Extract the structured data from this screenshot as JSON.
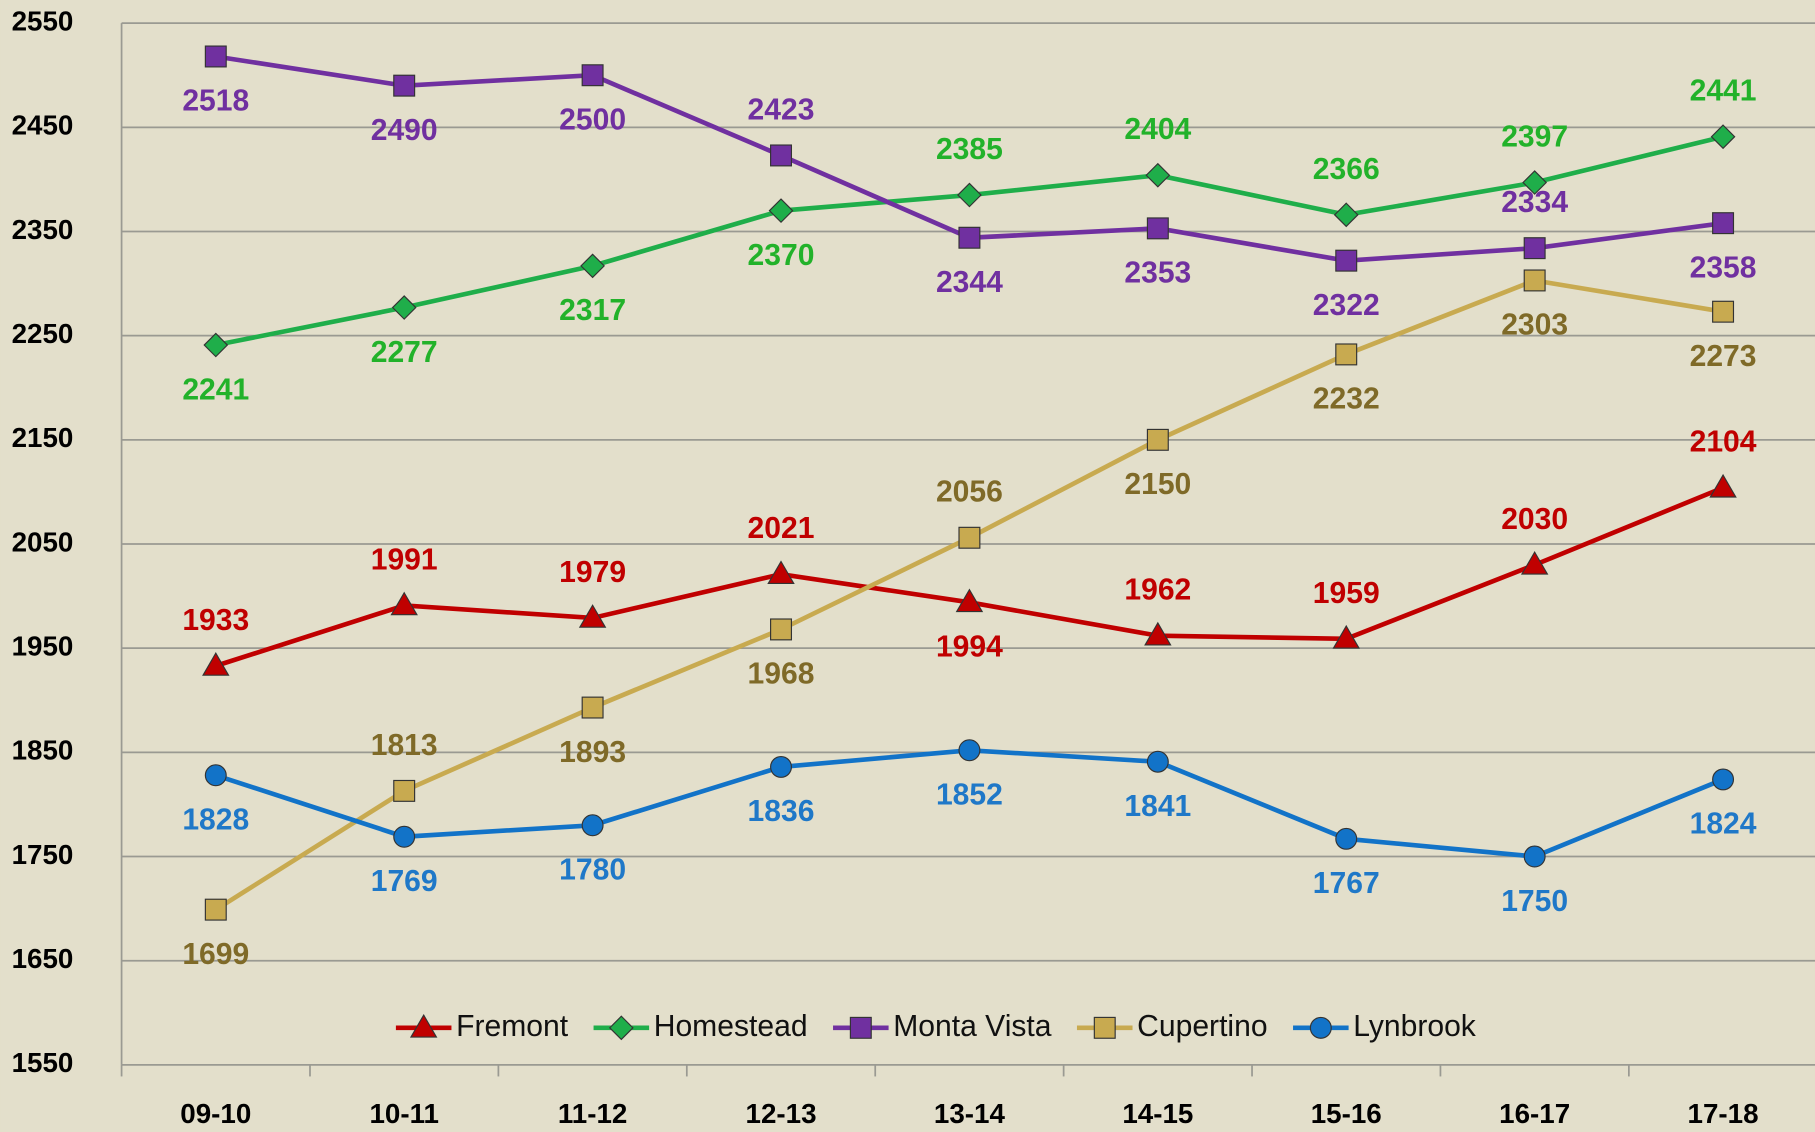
{
  "chart_data": {
    "type": "line",
    "categories": [
      "09-10",
      "10-11",
      "11-12",
      "12-13",
      "13-14",
      "14-15",
      "15-16",
      "16-17",
      "17-18"
    ],
    "series": [
      {
        "name": "Fremont",
        "color": "#c00000",
        "values": [
          1933,
          1991,
          1979,
          2021,
          1994,
          1962,
          1959,
          2030,
          2104
        ]
      },
      {
        "name": "Homestead",
        "color": "#1fae4a",
        "values": [
          2241,
          2277,
          2317,
          2370,
          2385,
          2404,
          2366,
          2397,
          2441
        ]
      },
      {
        "name": "Monta Vista",
        "color": "#7030a0",
        "values": [
          2518,
          2490,
          2500,
          2423,
          2344,
          2353,
          2322,
          2334,
          2358
        ]
      },
      {
        "name": "Cupertino",
        "color": "#c8aa50",
        "values": [
          1699,
          1813,
          1893,
          1968,
          2056,
          2150,
          2232,
          2303,
          2273
        ]
      },
      {
        "name": "Lynbrook",
        "color": "#1273c8",
        "values": [
          1828,
          1769,
          1780,
          1836,
          1852,
          1841,
          1767,
          1750,
          1824
        ]
      }
    ],
    "ylim": [
      1550,
      2550
    ],
    "yticks": [
      1550,
      1650,
      1750,
      1850,
      1950,
      2050,
      2150,
      2250,
      2350,
      2450,
      2550
    ],
    "grid": true,
    "legend": "bottom"
  }
}
